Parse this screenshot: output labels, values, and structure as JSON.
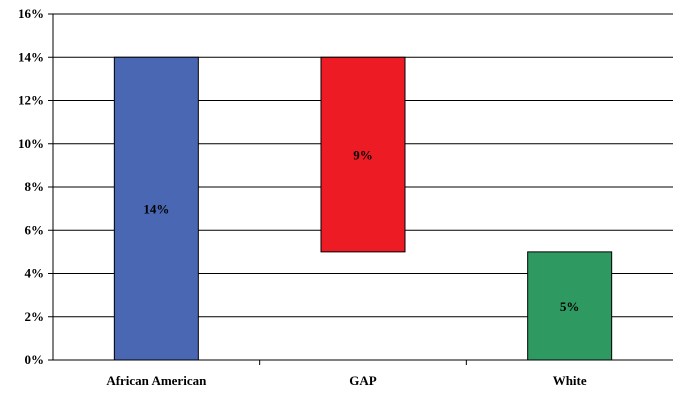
{
  "chart_data": {
    "type": "bar",
    "subtype": "waterfall",
    "title": "",
    "xlabel": "",
    "ylabel": "",
    "ylim": [
      0,
      16
    ],
    "y_ticks": [
      0,
      2,
      4,
      6,
      8,
      10,
      12,
      14,
      16
    ],
    "y_tick_labels": [
      "0%",
      "2%",
      "4%",
      "6%",
      "8%",
      "10%",
      "12%",
      "14%",
      "16%"
    ],
    "grid": "horizontal",
    "legend": "none",
    "categories": [
      "African American",
      "GAP",
      "White"
    ],
    "bars": [
      {
        "category": "African American",
        "start": 0,
        "end": 14,
        "label": "14%",
        "color": "#4a67b3"
      },
      {
        "category": "GAP",
        "start": 5,
        "end": 14,
        "label": "9%",
        "color": "#ed1c24"
      },
      {
        "category": "White",
        "start": 0,
        "end": 5,
        "label": "5%",
        "color": "#2e9a62"
      }
    ]
  }
}
